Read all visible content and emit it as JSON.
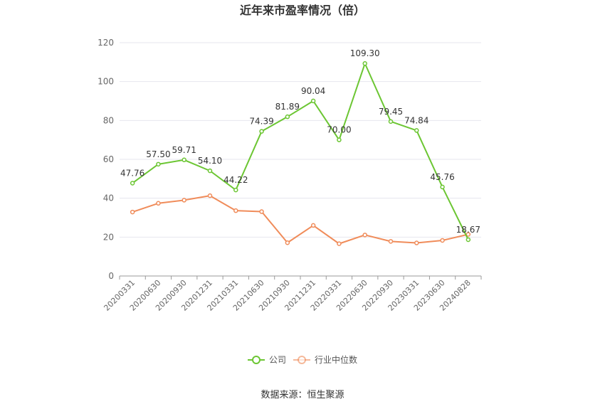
{
  "chart_data": {
    "type": "line",
    "title": "近年来市盈率情况（倍）",
    "categories": [
      "20200331",
      "20200630",
      "20200930",
      "20201231",
      "20210331",
      "20210630",
      "20210930",
      "20211231",
      "20220331",
      "20220630",
      "20220930",
      "20230331",
      "20230630",
      "20240828"
    ],
    "series": [
      {
        "name": "公司",
        "color": "#6cc633",
        "values": [
          47.76,
          57.5,
          59.71,
          54.1,
          44.22,
          74.39,
          81.89,
          90.04,
          70.0,
          109.3,
          79.45,
          74.84,
          45.76,
          18.67
        ],
        "labels": [
          "47.76",
          "57.50",
          "59.71",
          "54.10",
          "44.22",
          "74.39",
          "81.89",
          "90.04",
          "70.00",
          "109.30",
          "79.45",
          "74.84",
          "45.76",
          "18.67"
        ]
      },
      {
        "name": "行业中位数",
        "color": "#f08c5a",
        "values": [
          32.9,
          37.4,
          39.0,
          41.3,
          33.6,
          33.1,
          17.1,
          26.0,
          16.6,
          21.1,
          17.8,
          17.0,
          18.3,
          21.4
        ]
      }
    ],
    "yticks": [
      "0",
      "20",
      "40",
      "60",
      "80",
      "100",
      "120"
    ],
    "ylim": [
      0,
      120
    ],
    "grid": true,
    "legend_position": "bottom"
  },
  "source_text": "数据来源：恒生聚源"
}
